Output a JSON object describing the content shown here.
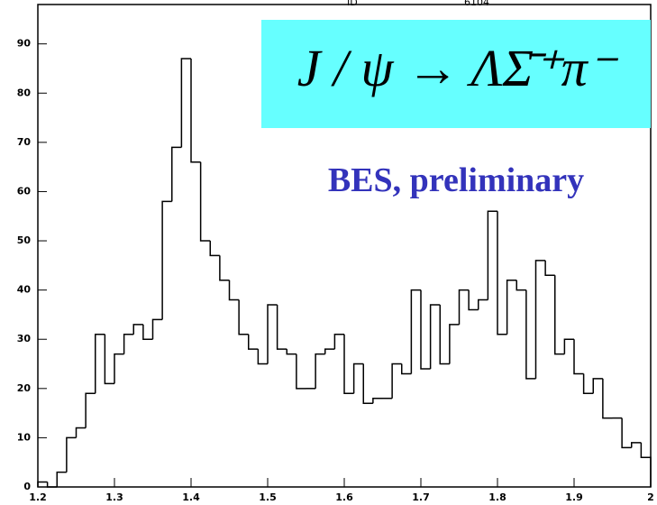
{
  "chart_data": {
    "type": "histogram",
    "formula": "J / ψ → ΛΣ̄⁺π⁻",
    "subtitle": "BES, preliminary",
    "stats_labels": [
      "ID",
      "6104"
    ],
    "bins": [
      1.2,
      1.2125,
      1.225,
      1.2375,
      1.25,
      1.2625,
      1.275,
      1.2875,
      1.3,
      1.3125,
      1.325,
      1.3375,
      1.35,
      1.3625,
      1.375,
      1.3875,
      1.4,
      1.4125,
      1.425,
      1.4375,
      1.45,
      1.4625,
      1.475,
      1.4875,
      1.5,
      1.5125,
      1.525,
      1.5375,
      1.55,
      1.5625,
      1.575,
      1.5875,
      1.6,
      1.6125,
      1.625,
      1.6375,
      1.65,
      1.6625,
      1.675,
      1.6875,
      1.7,
      1.7125,
      1.725,
      1.7375,
      1.75,
      1.7625,
      1.775,
      1.7875,
      1.8,
      1.8125,
      1.825,
      1.8375,
      1.85,
      1.8625,
      1.875,
      1.8875,
      1.9,
      1.9125,
      1.925,
      1.9375,
      1.95,
      1.9625,
      1.975,
      1.9875,
      2.0
    ],
    "values": [
      1,
      0,
      3,
      10,
      12,
      19,
      31,
      21,
      27,
      31,
      33,
      30,
      34,
      58,
      69,
      87,
      66,
      50,
      47,
      42,
      38,
      31,
      28,
      25,
      37,
      28,
      27,
      20,
      20,
      27,
      28,
      31,
      19,
      25,
      17,
      18,
      18,
      25,
      23,
      40,
      24,
      37,
      25,
      33,
      40,
      36,
      38,
      56,
      31,
      42,
      40,
      22,
      46,
      43,
      27,
      30,
      23,
      19,
      22,
      14,
      14,
      8,
      9,
      6
    ],
    "color": "#000000",
    "xlim": [
      1.2,
      2.0
    ],
    "xticks": [
      1.2,
      1.3,
      1.4,
      1.5,
      1.6,
      1.7,
      1.8,
      1.9,
      2
    ],
    "ylim": [
      0,
      98
    ],
    "yticks": [
      0,
      10,
      20,
      30,
      40,
      50,
      60,
      70,
      80,
      90
    ],
    "formula_box_color": "#66ffff",
    "subtitle_color": "#3333bb"
  }
}
